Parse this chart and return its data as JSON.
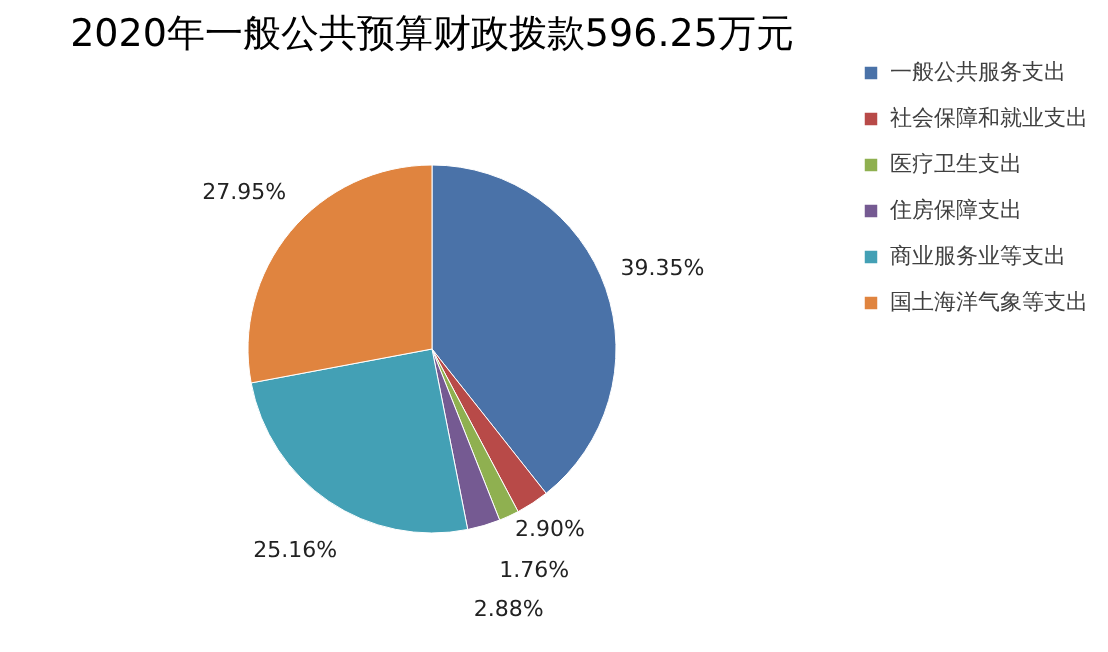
{
  "chart_data": {
    "type": "pie",
    "title": "2020年一般公共预算财政拨款596.25万元",
    "categories": [
      "一般公共服务支出",
      "社会保障和就业支出",
      "医疗卫生支出",
      "住房保障支出",
      "商业服务业等支出",
      "国土海洋气象等支出"
    ],
    "values": [
      39.35,
      2.9,
      1.76,
      2.88,
      25.16,
      27.95
    ],
    "value_labels": [
      "39.35%",
      "2.90%",
      "1.76%",
      "2.88%",
      "25.16%",
      "27.95%"
    ],
    "colors": [
      "#4a72a8",
      "#b84a48",
      "#8fb050",
      "#755a92",
      "#43a0b5",
      "#e0843f"
    ],
    "legend": "right"
  }
}
